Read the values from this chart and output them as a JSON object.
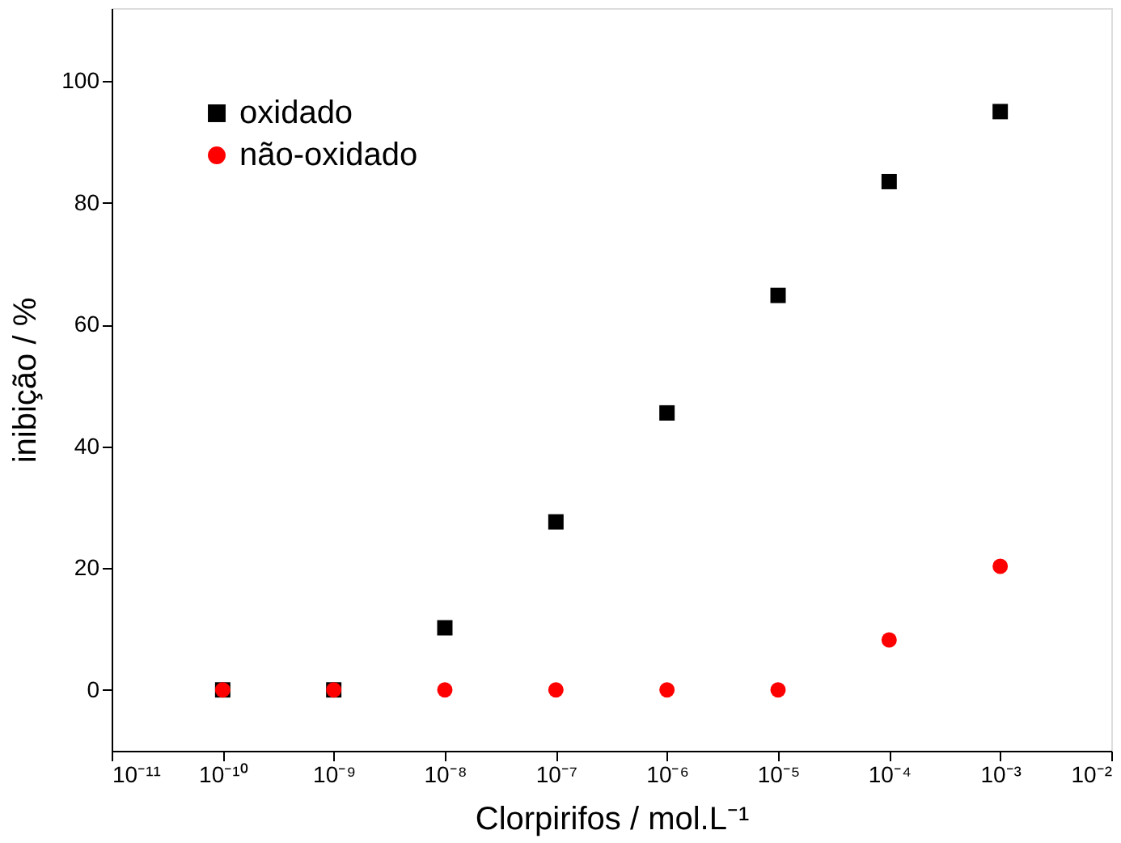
{
  "chart_data": {
    "type": "scatter",
    "xlabel": "Clorpirifos / mol.L⁻¹",
    "ylabel": "inibição / %",
    "x": [
      1e-10,
      1e-09,
      1e-08,
      1e-07,
      1e-06,
      1e-05,
      0.0001,
      0.001
    ],
    "series": [
      {
        "name": "oxidado",
        "color": "#000000",
        "marker": "square",
        "values": [
          0,
          0,
          10.2,
          27.6,
          45.5,
          64.8,
          83.5,
          95.0
        ]
      },
      {
        "name": "não-oxidado",
        "color": "#ff0000",
        "marker": "circle",
        "values": [
          0,
          0,
          0,
          0,
          0,
          0,
          8.2,
          20.3
        ]
      }
    ],
    "log": "x",
    "xlim": [
      1e-11,
      0.01
    ],
    "xticks": [
      {
        "value": 1e-11,
        "label": "10⁻¹¹"
      },
      {
        "value": 1e-10,
        "label": "10⁻¹⁰"
      },
      {
        "value": 1e-09,
        "label": "10⁻⁹"
      },
      {
        "value": 1e-08,
        "label": "10⁻⁸"
      },
      {
        "value": 1e-07,
        "label": "10⁻⁷"
      },
      {
        "value": 1e-06,
        "label": "10⁻⁶"
      },
      {
        "value": 1e-05,
        "label": "10⁻⁵"
      },
      {
        "value": 0.0001,
        "label": "10⁻⁴"
      },
      {
        "value": 0.001,
        "label": "10⁻³"
      },
      {
        "value": 0.01,
        "label": "10⁻²"
      }
    ],
    "ylim": [
      -10,
      112
    ],
    "yticks": [
      0,
      20,
      40,
      60,
      80,
      100
    ],
    "grid": false,
    "legend": "top left"
  }
}
